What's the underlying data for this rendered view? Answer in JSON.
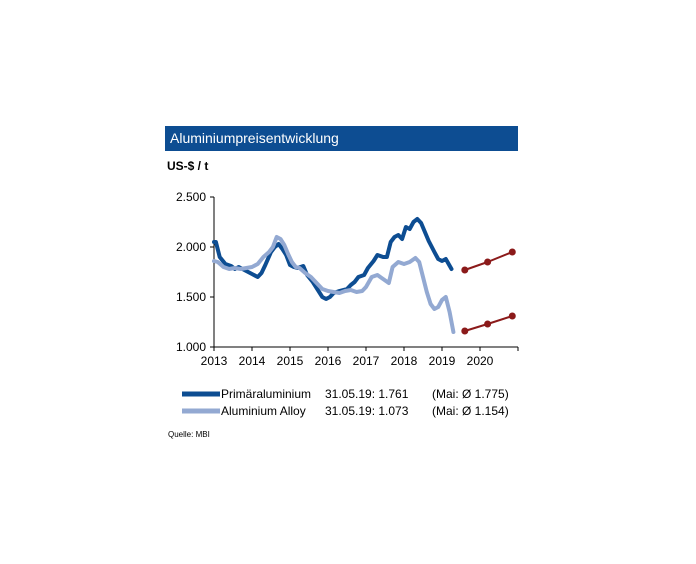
{
  "chart_data": {
    "type": "line",
    "title": "Aluminiumpreisentwicklung",
    "ylabel": "US-$ / t",
    "ylim": [
      1000,
      2500
    ],
    "xlim": [
      2013,
      2021
    ],
    "y_ticks": [
      "1.000",
      "1.500",
      "2.000",
      "2.500"
    ],
    "y_tick_values": [
      1000,
      1500,
      2000,
      2500
    ],
    "x_ticks": [
      "2013",
      "2014",
      "2015",
      "2016",
      "2017",
      "2018",
      "2019",
      "2020"
    ],
    "series": [
      {
        "name": "Primäraluminium",
        "color": "#0d4d92",
        "points": [
          [
            2013.0,
            2050
          ],
          [
            2013.05,
            2050
          ],
          [
            2013.15,
            1900
          ],
          [
            2013.3,
            1830
          ],
          [
            2013.45,
            1810
          ],
          [
            2013.55,
            1780
          ],
          [
            2013.65,
            1800
          ],
          [
            2013.75,
            1780
          ],
          [
            2013.85,
            1760
          ],
          [
            2014.0,
            1730
          ],
          [
            2014.15,
            1700
          ],
          [
            2014.25,
            1740
          ],
          [
            2014.35,
            1820
          ],
          [
            2014.5,
            1950
          ],
          [
            2014.6,
            2000
          ],
          [
            2014.7,
            2030
          ],
          [
            2014.8,
            1980
          ],
          [
            2014.9,
            1920
          ],
          [
            2015.0,
            1820
          ],
          [
            2015.1,
            1800
          ],
          [
            2015.2,
            1790
          ],
          [
            2015.35,
            1810
          ],
          [
            2015.45,
            1720
          ],
          [
            2015.6,
            1650
          ],
          [
            2015.75,
            1560
          ],
          [
            2015.85,
            1500
          ],
          [
            2015.95,
            1480
          ],
          [
            2016.05,
            1500
          ],
          [
            2016.15,
            1540
          ],
          [
            2016.3,
            1560
          ],
          [
            2016.5,
            1580
          ],
          [
            2016.6,
            1620
          ],
          [
            2016.7,
            1650
          ],
          [
            2016.8,
            1700
          ],
          [
            2016.95,
            1720
          ],
          [
            2017.05,
            1790
          ],
          [
            2017.2,
            1860
          ],
          [
            2017.3,
            1920
          ],
          [
            2017.45,
            1900
          ],
          [
            2017.55,
            1900
          ],
          [
            2017.65,
            2050
          ],
          [
            2017.75,
            2100
          ],
          [
            2017.85,
            2120
          ],
          [
            2017.95,
            2080
          ],
          [
            2018.05,
            2200
          ],
          [
            2018.15,
            2180
          ],
          [
            2018.25,
            2250
          ],
          [
            2018.35,
            2280
          ],
          [
            2018.45,
            2240
          ],
          [
            2018.55,
            2150
          ],
          [
            2018.65,
            2060
          ],
          [
            2018.8,
            1950
          ],
          [
            2018.9,
            1880
          ],
          [
            2019.0,
            1860
          ],
          [
            2019.1,
            1880
          ],
          [
            2019.25,
            1780
          ]
        ]
      },
      {
        "name": "Aluminium Alloy",
        "color": "#93a9d2",
        "points": [
          [
            2013.0,
            1860
          ],
          [
            2013.1,
            1850
          ],
          [
            2013.25,
            1800
          ],
          [
            2013.4,
            1780
          ],
          [
            2013.55,
            1790
          ],
          [
            2013.7,
            1780
          ],
          [
            2013.85,
            1790
          ],
          [
            2014.0,
            1800
          ],
          [
            2014.15,
            1830
          ],
          [
            2014.3,
            1900
          ],
          [
            2014.45,
            1950
          ],
          [
            2014.55,
            2000
          ],
          [
            2014.65,
            2100
          ],
          [
            2014.75,
            2080
          ],
          [
            2014.85,
            2020
          ],
          [
            2014.95,
            1930
          ],
          [
            2015.05,
            1850
          ],
          [
            2015.15,
            1800
          ],
          [
            2015.25,
            1790
          ],
          [
            2015.4,
            1740
          ],
          [
            2015.55,
            1700
          ],
          [
            2015.7,
            1640
          ],
          [
            2015.85,
            1580
          ],
          [
            2016.0,
            1560
          ],
          [
            2016.15,
            1550
          ],
          [
            2016.3,
            1540
          ],
          [
            2016.45,
            1560
          ],
          [
            2016.6,
            1570
          ],
          [
            2016.75,
            1550
          ],
          [
            2016.9,
            1560
          ],
          [
            2017.0,
            1600
          ],
          [
            2017.15,
            1700
          ],
          [
            2017.3,
            1720
          ],
          [
            2017.45,
            1680
          ],
          [
            2017.6,
            1640
          ],
          [
            2017.7,
            1800
          ],
          [
            2017.85,
            1850
          ],
          [
            2018.0,
            1830
          ],
          [
            2018.15,
            1850
          ],
          [
            2018.3,
            1890
          ],
          [
            2018.4,
            1850
          ],
          [
            2018.5,
            1700
          ],
          [
            2018.6,
            1550
          ],
          [
            2018.7,
            1430
          ],
          [
            2018.8,
            1380
          ],
          [
            2018.9,
            1400
          ],
          [
            2019.0,
            1470
          ],
          [
            2019.1,
            1500
          ],
          [
            2019.2,
            1350
          ],
          [
            2019.3,
            1150
          ]
        ]
      },
      {
        "name": "forecast-primary",
        "color": "#8b1a1a",
        "points": [
          [
            2019.6,
            1770
          ],
          [
            2020.2,
            1850
          ],
          [
            2020.85,
            1950
          ]
        ]
      },
      {
        "name": "forecast-alloy",
        "color": "#8b1a1a",
        "points": [
          [
            2019.6,
            1160
          ],
          [
            2020.2,
            1230
          ],
          [
            2020.85,
            1310
          ]
        ]
      }
    ],
    "grid": false
  },
  "legend": [
    {
      "name": "Primäraluminium",
      "date_value": "31.05.19: 1.761",
      "avg": "(Mai: Ø 1.775)",
      "color": "#0d4d92"
    },
    {
      "name": "Aluminium Alloy",
      "date_value": "31.05.19: 1.073",
      "avg": "(Mai: Ø 1.154)",
      "color": "#93a9d2"
    }
  ],
  "source": "Quelle:  MBI"
}
